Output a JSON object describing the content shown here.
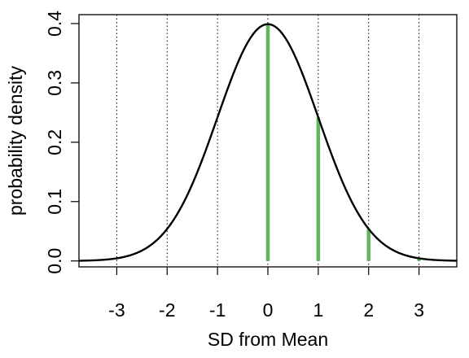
{
  "chart_data": {
    "type": "line",
    "xlabel": "SD from Mean",
    "ylabel": "probability density",
    "xlim": [
      -3.75,
      3.75
    ],
    "ylim": [
      -0.01,
      0.415
    ],
    "x_ticks": [
      -3,
      -2,
      -1,
      0,
      1,
      2,
      3
    ],
    "x_tick_labels": [
      "-3",
      "-2",
      "-1",
      "0",
      "1",
      "2",
      "3"
    ],
    "y_ticks": [
      0.0,
      0.1,
      0.2,
      0.3,
      0.4
    ],
    "y_tick_labels": [
      "0.0",
      "0.1",
      "0.2",
      "0.3",
      "0.4"
    ],
    "vertical_gridlines": [
      -3,
      -2,
      -1,
      0,
      1,
      2,
      3
    ],
    "gridline_style": "dotted",
    "series": [
      {
        "curve": "normal density",
        "mean": 0,
        "sd": 1,
        "color": "#000000"
      }
    ],
    "highlight_segments": {
      "color": "#5cb85c",
      "x": [
        0,
        1,
        2,
        3
      ],
      "y": [
        0.399,
        0.242,
        0.054,
        0.004
      ]
    },
    "grid": true,
    "legend": "none"
  }
}
